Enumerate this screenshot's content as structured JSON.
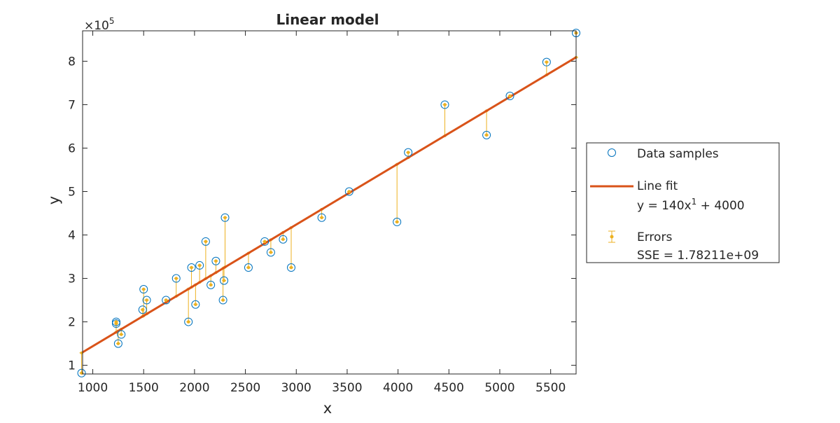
{
  "chart_data": {
    "type": "scatter",
    "title": "Linear model",
    "xlabel": "x",
    "ylabel": "y",
    "xlim": [
      900,
      5750
    ],
    "ylim": [
      80000,
      870000
    ],
    "xticks": [
      1000,
      1500,
      2000,
      2500,
      3000,
      3500,
      4000,
      4500,
      5000,
      5500
    ],
    "yticks": [
      100000,
      200000,
      300000,
      400000,
      500000,
      600000,
      700000,
      800000
    ],
    "ytick_labels": [
      "1",
      "2",
      "3",
      "4",
      "5",
      "6",
      "7",
      "8"
    ],
    "xtick_labels": [
      "1000",
      "1500",
      "2000",
      "2500",
      "3000",
      "3500",
      "4000",
      "4500",
      "5000",
      "5500"
    ],
    "y_exponent_base": "×10",
    "y_exponent_power": "5",
    "grid": false,
    "legend_position": "outside-right",
    "colors": {
      "samples": "#0072bd",
      "fit": "#d95319",
      "errors": "#edb120"
    },
    "fit": {
      "slope": 140,
      "intercept": 4000
    },
    "series": [
      {
        "name": "Data samples",
        "x": [
          890,
          1230,
          1230,
          1250,
          1280,
          1490,
          1500,
          1530,
          1720,
          1820,
          1940,
          1970,
          2010,
          2050,
          2110,
          2160,
          2210,
          2280,
          2290,
          2300,
          2530,
          2690,
          2750,
          2870,
          2950,
          3250,
          3520,
          3990,
          4100,
          4460,
          4870,
          5100,
          5460,
          5750
        ],
        "y": [
          82000,
          200000,
          196000,
          150000,
          171000,
          228000,
          275000,
          250000,
          250000,
          300000,
          200000,
          325000,
          240000,
          330000,
          385000,
          285000,
          340000,
          250000,
          295000,
          440000,
          325000,
          385000,
          360000,
          390000,
          325000,
          440000,
          500000,
          430000,
          590000,
          700000,
          630000,
          720000,
          798000,
          865000
        ]
      }
    ]
  },
  "legend": {
    "samples_label": "Data samples",
    "fit_label": "Line fit",
    "fit_equation_prefix": "y = 140x",
    "fit_equation_power": "1",
    "fit_equation_suffix": " + 4000",
    "errors_label": "Errors",
    "sse_label": "SSE =  1.78211e+09"
  }
}
